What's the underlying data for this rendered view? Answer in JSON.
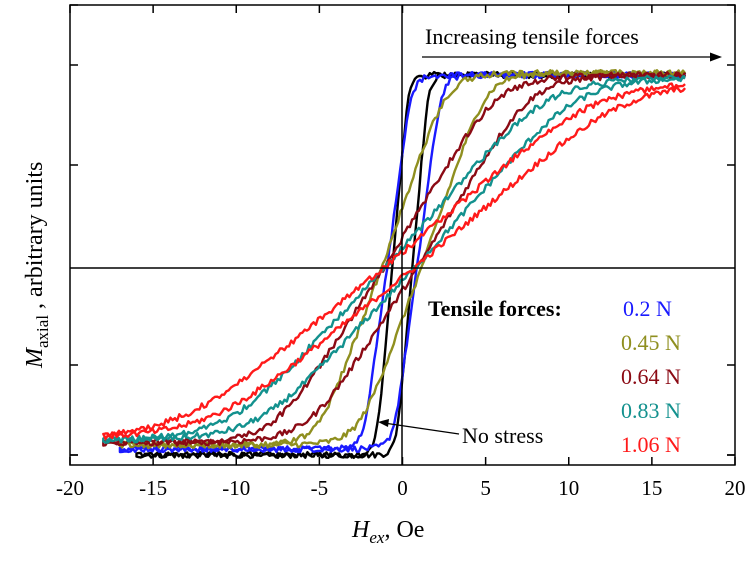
{
  "chart_data": {
    "type": "line",
    "xlabel_symbol": "H",
    "xlabel_subscript": "ex",
    "xlabel_unit": ", Oe",
    "ylabel_symbol": "M",
    "ylabel_subscript": "axial",
    "ylabel_rest": " , arbitrary units",
    "xlim": [
      -20,
      20
    ],
    "ylim": [
      -1.0,
      1.3
    ],
    "xticks": [
      -20,
      -15,
      -10,
      -5,
      0,
      5,
      10,
      15,
      20
    ],
    "xtick_labels": [
      "-20",
      "-15",
      "-10",
      "-5",
      "0",
      "5",
      "10",
      "15",
      "20"
    ],
    "ytick_values": [
      -0.95,
      -0.5,
      0.5,
      1.0
    ],
    "grid": false,
    "annotation_top": "Increasing tensile forces",
    "annotation_no_stress": "No stress",
    "legend_title": "Tensile forces:",
    "legend_placement": "bottom-right",
    "series": [
      {
        "name": "",
        "color": "#000000",
        "saturation_field": 1.0,
        "coercivity": 0.6,
        "x_range": [
          -16,
          17
        ],
        "upper_sat": 0.95,
        "lower_sat": -0.95
      },
      {
        "name": "0.2 N",
        "color": "#1a1aff",
        "saturation_field": 1.5,
        "coercivity": 0.9,
        "x_range": [
          -17,
          17
        ],
        "upper_sat": 0.95,
        "lower_sat": -0.92
      },
      {
        "name": "0.45 N",
        "color": "#8f8f1f",
        "saturation_field": 4.0,
        "coercivity": 1.2,
        "x_range": [
          -17,
          17
        ],
        "upper_sat": 0.96,
        "lower_sat": -0.9
      },
      {
        "name": "0.64 N",
        "color": "#8b0a14",
        "saturation_field": 7.0,
        "coercivity": 1.0,
        "x_range": [
          -18,
          17
        ],
        "upper_sat": 0.95,
        "lower_sat": -0.89
      },
      {
        "name": "0.83 N",
        "color": "#13918e",
        "saturation_field": 10.0,
        "coercivity": 0.9,
        "x_range": [
          -18,
          17
        ],
        "upper_sat": 0.94,
        "lower_sat": -0.88
      },
      {
        "name": "1.06 N",
        "color": "#ff1a1a",
        "saturation_field": 13.0,
        "coercivity": 0.9,
        "x_range": [
          -18,
          17
        ],
        "upper_sat": 0.92,
        "lower_sat": -0.87
      }
    ]
  }
}
